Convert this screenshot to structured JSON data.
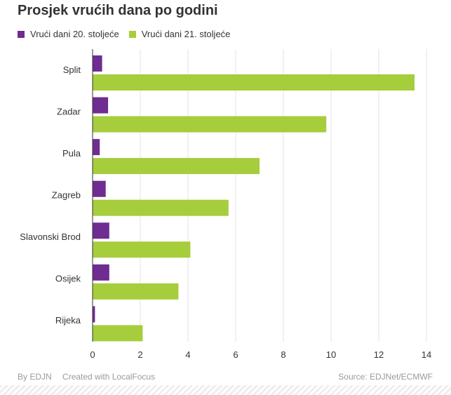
{
  "colors": {
    "series_20": "#6f2c91",
    "series_21": "#a6cd3c",
    "grid": "#e3e3e3",
    "axis": "#333333",
    "text": "#333333",
    "footer_text": "#9a9a9a"
  },
  "footer": {
    "by": "By EDJN",
    "created": "Created with LocalFocus",
    "source": "Source:  EDJNet/ECMWF"
  },
  "chart_data": {
    "type": "bar",
    "orientation": "horizontal",
    "title": "Prosjek vrućih dana po godini",
    "categories": [
      "Split",
      "Zadar",
      "Pula",
      "Zagreb",
      "Slavonski Brod",
      "Osijek",
      "Rijeka"
    ],
    "series": [
      {
        "name": "Vrući dani 20. stoljeće",
        "values": [
          0.4,
          0.65,
          0.3,
          0.55,
          0.7,
          0.7,
          0.1
        ]
      },
      {
        "name": "Vrući dani 21. stoljeće",
        "values": [
          13.5,
          9.8,
          7.0,
          5.7,
          4.1,
          3.6,
          2.1
        ]
      }
    ],
    "xlim": [
      0,
      14.5
    ],
    "xticks": [
      "0",
      "2",
      "4",
      "6",
      "8",
      "10",
      "12",
      "14"
    ],
    "xtick_values": [
      0,
      2,
      4,
      6,
      8,
      10,
      12,
      14
    ],
    "grid": true,
    "legend_position": "top-left"
  }
}
